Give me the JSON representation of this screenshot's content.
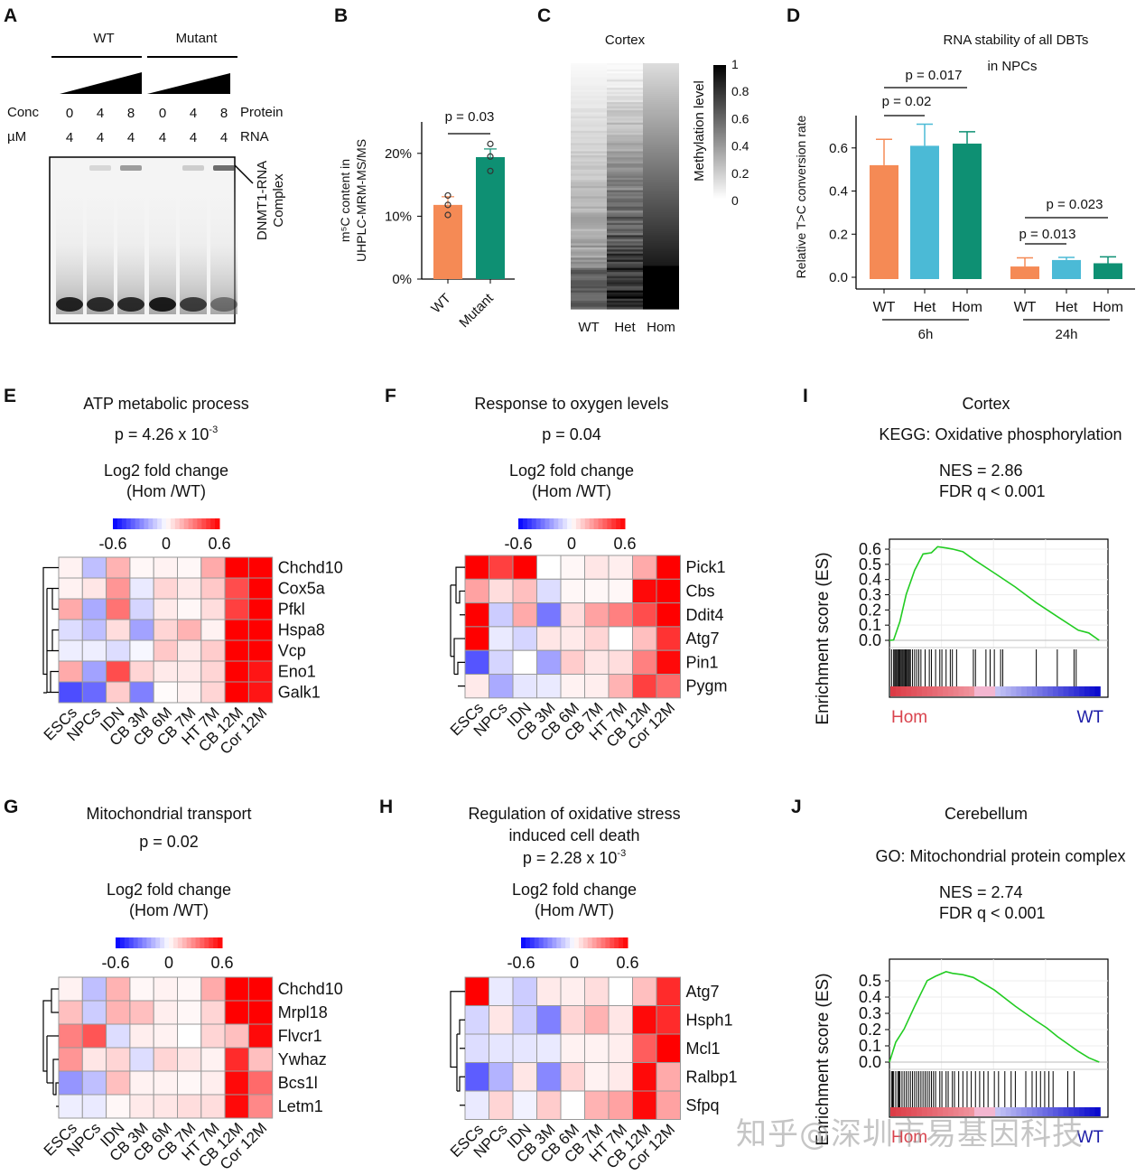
{
  "panel_labels": [
    "A",
    "B",
    "C",
    "D",
    "E",
    "F",
    "G",
    "H",
    "I",
    "J"
  ],
  "watermark": "知乎@深圳市易基因科技",
  "chart_data": [
    {
      "panel": "A",
      "type": "table",
      "title": "EMSA gel",
      "groups": [
        "WT",
        "Mutant"
      ],
      "row_labels": {
        "conc": "Conc",
        "unit": "µM",
        "protein": "Protein",
        "rna": "RNA"
      },
      "protein_conc": [
        0,
        4,
        8,
        0,
        4,
        8
      ],
      "rna_conc": [
        4,
        4,
        4,
        4,
        4,
        4
      ],
      "complex_label": "DNMT1-RNA Complex",
      "complex_band_intensity": [
        0,
        0.15,
        0.45,
        0,
        0.2,
        0.7
      ],
      "free_band_intensity": [
        0.9,
        0.85,
        0.85,
        0.95,
        0.75,
        0.45
      ]
    },
    {
      "panel": "B",
      "type": "bar",
      "categories": [
        "WT",
        "Mutant"
      ],
      "values": [
        11.8,
        19.4
      ],
      "errors": [
        1.3,
        1.3
      ],
      "points": [
        [
          13.3,
          11.8,
          10.2
        ],
        [
          21.5,
          19.5,
          17.2
        ]
      ],
      "colors": [
        "#f58a55",
        "#0e9073"
      ],
      "ylabel": "m5C content in UHPLC-MRM-MS/MS",
      "ylabel_line1": "m⁵C content in",
      "ylabel_line2": "UHPLC-MRM-MS/MS",
      "yticks": [
        "0%",
        "10%",
        "20%"
      ],
      "ytick_values": [
        0,
        10,
        20
      ],
      "ylim": [
        0,
        25
      ],
      "annotation": "p = 0.03"
    },
    {
      "panel": "C",
      "type": "heatmap",
      "title": "Cortex",
      "columns": [
        "WT",
        "Het",
        "Hom"
      ],
      "colorbar_label": "Methylation level",
      "colorbar_ticks": [
        "1",
        "0.8",
        "0.6",
        "0.4",
        "0.2",
        "0"
      ],
      "colorbar_range": [
        0,
        1
      ],
      "mean_levels": [
        0.15,
        0.4,
        0.55
      ]
    },
    {
      "panel": "D",
      "type": "bar",
      "title_line1": "RNA stability of all DBTs",
      "title_line2": "in NPCs",
      "ylabel": "Relative T>C conversion rate",
      "groups": [
        "6h",
        "24h"
      ],
      "categories": [
        "WT",
        "Het",
        "Hom"
      ],
      "series": [
        {
          "group": "6h",
          "values": [
            0.52,
            0.61,
            0.62
          ],
          "errors": [
            0.12,
            0.1,
            0.055
          ]
        },
        {
          "group": "24h",
          "values": [
            0.05,
            0.08,
            0.065
          ],
          "errors": [
            0.04,
            0.012,
            0.03
          ]
        }
      ],
      "colors": [
        "#f58a55",
        "#4bbad6",
        "#0e9073"
      ],
      "yticks": [
        "0.0",
        "0.2",
        "0.4",
        "0.6"
      ],
      "ytick_values": [
        0,
        0.2,
        0.4,
        0.6
      ],
      "ylim": [
        0,
        0.75
      ],
      "annotations": [
        {
          "text": "p = 0.02",
          "group": "6h",
          "from": 0,
          "to": 1
        },
        {
          "text": "p = 0.017",
          "group": "6h",
          "from": 0,
          "to": 2
        },
        {
          "text": "p = 0.013",
          "group": "24h",
          "from": 0,
          "to": 1
        },
        {
          "text": "p = 0.023",
          "group": "24h",
          "from": 0,
          "to": 2
        }
      ]
    },
    {
      "panel": "E",
      "type": "heatmap",
      "title": "ATP metabolic process",
      "p_prefix": "p = 4.26 x 10",
      "p_exp": "-3",
      "legend_title_1": "Log2 fold change",
      "legend_title_2": "(Hom /WT)",
      "legend_ticks": [
        "-0.6",
        "0",
        "0.6"
      ],
      "range": [
        -0.6,
        0.6
      ],
      "columns": [
        "ESCs",
        "NPCs",
        "IDN",
        "CB 3M",
        "CB 6M",
        "CB 7M",
        "HT 7M",
        "CB 12M",
        "Cor 12M"
      ],
      "rows": [
        "Chchd10",
        "Cox5a",
        "Pfkl",
        "Hspa8",
        "Vcp",
        "Eno1",
        "Galk1"
      ],
      "values": [
        [
          0.03,
          -0.15,
          0.18,
          0.02,
          0.03,
          0.02,
          0.2,
          0.6,
          0.6
        ],
        [
          0.03,
          0.06,
          0.25,
          -0.05,
          0.1,
          0.05,
          0.13,
          0.42,
          0.6
        ],
        [
          0.2,
          -0.2,
          0.33,
          -0.1,
          0.05,
          0.02,
          0.08,
          0.45,
          0.6
        ],
        [
          -0.08,
          -0.15,
          0.08,
          -0.22,
          0.1,
          0.18,
          0.03,
          0.6,
          0.6
        ],
        [
          -0.04,
          -0.04,
          -0.08,
          -0.02,
          0.13,
          0.05,
          0.12,
          0.6,
          0.6
        ],
        [
          0.2,
          -0.22,
          0.42,
          0.1,
          0.05,
          0.05,
          0.1,
          0.6,
          0.55
        ],
        [
          -0.42,
          -0.35,
          0.12,
          -0.3,
          0.01,
          0.03,
          0.1,
          0.6,
          0.55
        ]
      ]
    },
    {
      "panel": "F",
      "type": "heatmap",
      "title": "Response to oxygen levels",
      "p_prefix": "p = 0.04",
      "p_exp": "",
      "legend_title_1": "Log2 fold change",
      "legend_title_2": "(Hom /WT)",
      "legend_ticks": [
        "-0.6",
        "0",
        "0.6"
      ],
      "range": [
        -0.6,
        0.6
      ],
      "columns": [
        "ESCs",
        "NPCs",
        "IDN",
        "CB 3M",
        "CB 6M",
        "CB 7M",
        "HT 7M",
        "CB 12M",
        "Cor 12M"
      ],
      "rows": [
        "Pick1",
        "Cbs",
        "Ddit4",
        "Atg7",
        "Pin1",
        "Pygm"
      ],
      "values": [
        [
          0.6,
          0.45,
          0.6,
          0.0,
          0.02,
          0.06,
          0.04,
          0.2,
          0.6
        ],
        [
          0.22,
          0.08,
          0.15,
          -0.08,
          0.02,
          0.02,
          0.02,
          0.58,
          0.6
        ],
        [
          0.6,
          -0.12,
          0.2,
          -0.32,
          0.08,
          0.22,
          0.3,
          0.42,
          0.6
        ],
        [
          0.6,
          -0.05,
          -0.1,
          0.06,
          0.05,
          0.1,
          0.0,
          0.15,
          0.48
        ],
        [
          -0.4,
          -0.1,
          0.0,
          -0.22,
          0.12,
          0.06,
          0.08,
          0.3,
          0.58
        ],
        [
          0.05,
          -0.2,
          -0.06,
          -0.05,
          0.03,
          0.04,
          0.18,
          0.45,
          0.35
        ]
      ]
    },
    {
      "panel": "G",
      "type": "heatmap",
      "title": "Mitochondrial transport",
      "p_prefix": "p = 0.02",
      "p_exp": "",
      "legend_title_1": "Log2 fold change",
      "legend_title_2": "(Hom /WT)",
      "legend_ticks": [
        "-0.6",
        "0",
        "0.6"
      ],
      "range": [
        -0.6,
        0.6
      ],
      "columns": [
        "ESCs",
        "NPCs",
        "IDN",
        "CB 3M",
        "CB 6M",
        "CB 7M",
        "HT 7M",
        "CB 12M",
        "Cor 12M"
      ],
      "rows": [
        "Chchd10",
        "Mrpl18",
        "Flvcr1",
        "Ywhaz",
        "Bcs1l",
        "Letm1"
      ],
      "values": [
        [
          0.03,
          -0.15,
          0.18,
          0.02,
          0.03,
          0.02,
          0.2,
          0.6,
          0.6
        ],
        [
          0.15,
          -0.12,
          0.18,
          0.15,
          0.04,
          0.02,
          0.1,
          0.6,
          0.6
        ],
        [
          0.3,
          0.4,
          -0.08,
          0.04,
          0.03,
          0.0,
          0.1,
          0.15,
          0.58
        ],
        [
          0.25,
          0.06,
          0.1,
          -0.08,
          0.1,
          0.06,
          0.03,
          0.5,
          0.15
        ],
        [
          -0.25,
          -0.15,
          0.15,
          0.03,
          0.03,
          0.02,
          0.04,
          0.58,
          0.35
        ],
        [
          -0.04,
          -0.05,
          0.02,
          0.05,
          0.06,
          0.08,
          0.08,
          0.58,
          0.28
        ]
      ]
    },
    {
      "panel": "H",
      "type": "heatmap",
      "title": "Regulation of oxidative stress",
      "title_line2": "induced cell death",
      "p_prefix": "p = 2.28 x 10",
      "p_exp": "-3",
      "legend_title_1": "Log2 fold change",
      "legend_title_2": "(Hom /WT)",
      "legend_ticks": [
        "-0.6",
        "0",
        "0.6"
      ],
      "range": [
        -0.6,
        0.6
      ],
      "columns": [
        "ESCs",
        "NPCs",
        "IDN",
        "CB 3M",
        "CB 6M",
        "CB 7M",
        "HT 7M",
        "CB 12M",
        "Cor 12M"
      ],
      "rows": [
        "Atg7",
        "Hsph1",
        "Mcl1",
        "Ralbp1",
        "Sfpq"
      ],
      "values": [
        [
          0.6,
          -0.05,
          -0.12,
          0.05,
          0.04,
          0.08,
          0.0,
          0.15,
          0.5
        ],
        [
          -0.1,
          0.06,
          -0.12,
          -0.3,
          0.1,
          0.18,
          0.06,
          0.58,
          0.5
        ],
        [
          -0.08,
          -0.06,
          -0.06,
          -0.05,
          0.03,
          0.03,
          0.04,
          0.38,
          0.6
        ],
        [
          -0.38,
          -0.18,
          0.06,
          -0.28,
          0.1,
          0.03,
          0.05,
          0.58,
          0.2
        ],
        [
          -0.05,
          0.1,
          -0.03,
          0.12,
          0.0,
          0.18,
          0.22,
          0.58,
          0.22
        ]
      ]
    },
    {
      "panel": "I",
      "type": "line",
      "title": "Cortex",
      "subtitle": "KEGG: Oxidative phosphorylation",
      "nes": "NES = 2.86",
      "fdr": "FDR q < 0.001",
      "ylabel": "Enrichment score (ES)",
      "yticks": [
        "0.0",
        "0.1",
        "0.2",
        "0.3",
        "0.4",
        "0.5",
        "0.6"
      ],
      "ytick_values": [
        0,
        0.1,
        0.2,
        0.3,
        0.4,
        0.5,
        0.6
      ],
      "ylim": [
        0,
        0.63
      ],
      "x": [
        0,
        0.02,
        0.05,
        0.08,
        0.12,
        0.16,
        0.2,
        0.23,
        0.27,
        0.3,
        0.35,
        0.4,
        0.5,
        0.6,
        0.7,
        0.8,
        0.9,
        0.95,
        1.0
      ],
      "y": [
        0.0,
        0.0,
        0.12,
        0.3,
        0.46,
        0.57,
        0.58,
        0.62,
        0.61,
        0.6,
        0.58,
        0.53,
        0.44,
        0.35,
        0.25,
        0.16,
        0.07,
        0.05,
        0.0
      ],
      "hits": [
        0.01,
        0.02,
        0.025,
        0.03,
        0.035,
        0.04,
        0.045,
        0.05,
        0.055,
        0.06,
        0.065,
        0.07,
        0.075,
        0.08,
        0.085,
        0.09,
        0.095,
        0.1,
        0.11,
        0.12,
        0.13,
        0.14,
        0.15,
        0.17,
        0.19,
        0.2,
        0.22,
        0.24,
        0.25,
        0.27,
        0.29,
        0.3,
        0.32,
        0.4,
        0.41,
        0.46,
        0.48,
        0.5,
        0.53,
        0.54,
        0.7,
        0.8,
        0.88,
        0.89
      ],
      "left_label": "Hom",
      "right_label": "WT",
      "line_color": "#22cc22"
    },
    {
      "panel": "J",
      "type": "line",
      "title": "Cerebellum",
      "subtitle": "GO: Mitochondrial protein complex",
      "nes": "NES = 2.74",
      "fdr": "FDR q < 0.001",
      "ylabel": "Enrichment score (ES)",
      "yticks": [
        "0.0",
        "0.1",
        "0.2",
        "0.3",
        "0.4",
        "0.5"
      ],
      "ytick_values": [
        0,
        0.1,
        0.2,
        0.3,
        0.4,
        0.5
      ],
      "ylim": [
        0,
        0.6
      ],
      "x": [
        0,
        0.03,
        0.07,
        0.12,
        0.18,
        0.22,
        0.27,
        0.3,
        0.35,
        0.4,
        0.5,
        0.6,
        0.7,
        0.75,
        0.8,
        0.9,
        0.95,
        1.0
      ],
      "y": [
        0.0,
        0.12,
        0.2,
        0.34,
        0.5,
        0.53,
        0.56,
        0.55,
        0.54,
        0.52,
        0.44,
        0.34,
        0.25,
        0.21,
        0.16,
        0.07,
        0.03,
        0.0
      ],
      "hits": [
        0.01,
        0.015,
        0.02,
        0.03,
        0.04,
        0.045,
        0.05,
        0.06,
        0.07,
        0.08,
        0.09,
        0.1,
        0.11,
        0.12,
        0.13,
        0.14,
        0.15,
        0.16,
        0.17,
        0.18,
        0.19,
        0.2,
        0.21,
        0.22,
        0.24,
        0.25,
        0.27,
        0.28,
        0.3,
        0.31,
        0.33,
        0.35,
        0.37,
        0.39,
        0.41,
        0.43,
        0.45,
        0.47,
        0.5,
        0.52,
        0.55,
        0.58,
        0.6,
        0.65,
        0.68,
        0.7,
        0.72,
        0.74,
        0.76,
        0.78,
        0.85,
        0.88
      ],
      "left_label": "Hom",
      "right_label": "WT",
      "line_color": "#22cc22"
    }
  ]
}
